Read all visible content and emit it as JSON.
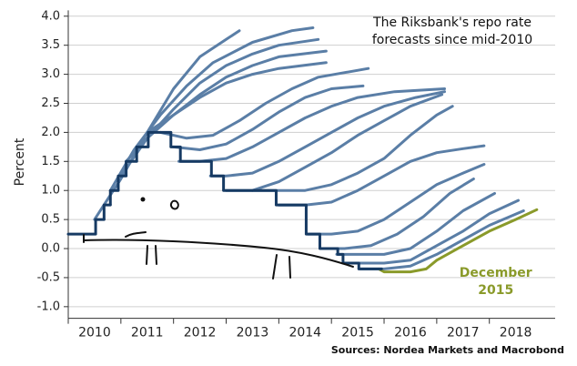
{
  "chart_data": {
    "type": "line",
    "title": "The Riksbank's repo rate forecasts since mid-2010",
    "y_label": "Percent",
    "source": "Sources: Nordea Markets and Macrobond",
    "xlim": [
      2010,
      2019.25
    ],
    "xticks": [
      2010,
      2011,
      2012,
      2013,
      2014,
      2015,
      2016,
      2017,
      2018
    ],
    "ylim": [
      -1.2,
      4.1
    ],
    "yticks": [
      {
        "value": -1,
        "label": "-1.0"
      },
      {
        "value": -0.5,
        "label": "-0.5"
      },
      {
        "value": 0,
        "label": "0.0"
      },
      {
        "value": 0.5,
        "label": "0.5"
      },
      {
        "value": 1,
        "label": "1.0"
      },
      {
        "value": 1.5,
        "label": "1.5"
      },
      {
        "value": 2,
        "label": "2.0"
      },
      {
        "value": 2.5,
        "label": "2.5"
      },
      {
        "value": 3,
        "label": "3.0"
      },
      {
        "value": 3.5,
        "label": "3.5"
      },
      {
        "value": 4,
        "label": "4.0"
      }
    ],
    "grid": true,
    "series": [
      {
        "color": "#163a63",
        "step": true,
        "x": [
          2010,
          2010.52,
          2010.68,
          2010.8,
          2010.95,
          2011.1,
          2011.3,
          2011.52,
          2011.95,
          2012.13,
          2012.72,
          2012.95,
          2013.95,
          2014.52,
          2014.78,
          2015.12,
          2015.22,
          2015.52,
          2015.95
        ],
        "values": [
          0.25,
          0.5,
          0.75,
          1.0,
          1.25,
          1.5,
          1.75,
          2.0,
          1.75,
          1.5,
          1.25,
          1.0,
          0.75,
          0.25,
          0.0,
          -0.1,
          -0.25,
          -0.35,
          -0.35
        ]
      },
      {
        "color": "#5a7ea6",
        "x": [
          2010.5,
          2011,
          2011.5,
          2012,
          2012.5,
          2013,
          2013.25
        ],
        "values": [
          0.5,
          1.2,
          2.0,
          2.75,
          3.3,
          3.6,
          3.75
        ]
      },
      {
        "color": "#5a7ea6",
        "x": [
          2010.8,
          2011.25,
          2011.75,
          2012.25,
          2012.75,
          2013.5,
          2014.25,
          2014.65
        ],
        "values": [
          1.0,
          1.7,
          2.3,
          2.8,
          3.2,
          3.55,
          3.75,
          3.8
        ]
      },
      {
        "color": "#5a7ea6",
        "x": [
          2011,
          2011.5,
          2012,
          2012.5,
          2013,
          2013.5,
          2014,
          2014.75
        ],
        "values": [
          1.25,
          1.9,
          2.4,
          2.85,
          3.15,
          3.35,
          3.5,
          3.6
        ]
      },
      {
        "color": "#5a7ea6",
        "x": [
          2011.1,
          2011.5,
          2012,
          2012.5,
          2013,
          2013.5,
          2014,
          2014.9
        ],
        "values": [
          1.5,
          1.9,
          2.3,
          2.65,
          2.95,
          3.15,
          3.3,
          3.4
        ]
      },
      {
        "color": "#5a7ea6",
        "x": [
          2011.5,
          2012,
          2012.5,
          2013,
          2013.5,
          2014,
          2014.9
        ],
        "values": [
          2.0,
          2.3,
          2.6,
          2.85,
          3.0,
          3.1,
          3.2
        ]
      },
      {
        "color": "#5a7ea6",
        "x": [
          2011.75,
          2012.25,
          2012.75,
          2013.25,
          2013.75,
          2014.25,
          2014.75,
          2015.7
        ],
        "values": [
          2.0,
          1.9,
          1.95,
          2.2,
          2.5,
          2.75,
          2.95,
          3.1
        ]
      },
      {
        "color": "#5a7ea6",
        "x": [
          2012,
          2012.5,
          2013,
          2013.5,
          2014,
          2014.5,
          2015,
          2015.6
        ],
        "values": [
          1.75,
          1.7,
          1.8,
          2.05,
          2.35,
          2.6,
          2.75,
          2.8
        ]
      },
      {
        "color": "#5a7ea6",
        "x": [
          2012.1,
          2012.5,
          2013,
          2013.5,
          2014,
          2014.5,
          2015,
          2015.5,
          2016.2,
          2017.15
        ],
        "values": [
          1.5,
          1.5,
          1.55,
          1.75,
          2.0,
          2.25,
          2.45,
          2.6,
          2.7,
          2.75
        ]
      },
      {
        "color": "#5a7ea6",
        "x": [
          2012.7,
          2013,
          2013.5,
          2014,
          2014.5,
          2015,
          2015.5,
          2016,
          2016.6,
          2017.15
        ],
        "values": [
          1.25,
          1.25,
          1.3,
          1.5,
          1.75,
          2.0,
          2.25,
          2.45,
          2.6,
          2.7
        ]
      },
      {
        "color": "#5a7ea6",
        "x": [
          2013,
          2013.5,
          2014,
          2014.5,
          2015,
          2015.5,
          2016,
          2016.5,
          2017.1
        ],
        "values": [
          1.0,
          1.0,
          1.15,
          1.4,
          1.65,
          1.95,
          2.2,
          2.45,
          2.65
        ]
      },
      {
        "color": "#5a7ea6",
        "x": [
          2013.5,
          2014,
          2014.5,
          2015,
          2015.5,
          2016,
          2016.5,
          2017,
          2017.3
        ],
        "values": [
          1.0,
          1.0,
          1.0,
          1.1,
          1.3,
          1.55,
          1.95,
          2.3,
          2.45
        ]
      },
      {
        "color": "#5a7ea6",
        "x": [
          2014,
          2014.5,
          2015,
          2015.5,
          2016,
          2016.5,
          2017,
          2017.5,
          2017.9
        ],
        "values": [
          0.75,
          0.75,
          0.8,
          1.0,
          1.25,
          1.5,
          1.65,
          1.72,
          1.77
        ]
      },
      {
        "color": "#5a7ea6",
        "x": [
          2014.55,
          2015,
          2015.5,
          2016,
          2016.5,
          2017,
          2017.5,
          2017.9
        ],
        "values": [
          0.25,
          0.25,
          0.3,
          0.5,
          0.8,
          1.1,
          1.3,
          1.45
        ]
      },
      {
        "color": "#5a7ea6",
        "x": [
          2014.8,
          2015.25,
          2015.75,
          2016.25,
          2016.75,
          2017.25,
          2017.7
        ],
        "values": [
          0.0,
          0.0,
          0.05,
          0.25,
          0.55,
          0.95,
          1.2
        ]
      },
      {
        "color": "#5a7ea6",
        "x": [
          2015.1,
          2015.5,
          2016,
          2016.5,
          2017,
          2017.5,
          2018.1
        ],
        "values": [
          -0.1,
          -0.1,
          -0.1,
          0.0,
          0.3,
          0.65,
          0.95
        ]
      },
      {
        "color": "#5a7ea6",
        "x": [
          2015.3,
          2016,
          2016.5,
          2017,
          2017.5,
          2018,
          2018.55
        ],
        "values": [
          -0.25,
          -0.25,
          -0.2,
          0.05,
          0.3,
          0.6,
          0.83
        ]
      },
      {
        "color": "#5a7ea6",
        "x": [
          2015.55,
          2016,
          2016.5,
          2017,
          2017.5,
          2018,
          2018.65
        ],
        "values": [
          -0.35,
          -0.35,
          -0.3,
          -0.1,
          0.15,
          0.4,
          0.65
        ]
      },
      {
        "name": "December 2015",
        "color": "#8a9a2a",
        "x": [
          2015.9,
          2016,
          2016.5,
          2016.8,
          2017,
          2017.5,
          2018,
          2018.5,
          2018.9
        ],
        "values": [
          -0.35,
          -0.4,
          -0.4,
          -0.35,
          -0.2,
          0.05,
          0.3,
          0.5,
          0.67
        ]
      }
    ]
  }
}
